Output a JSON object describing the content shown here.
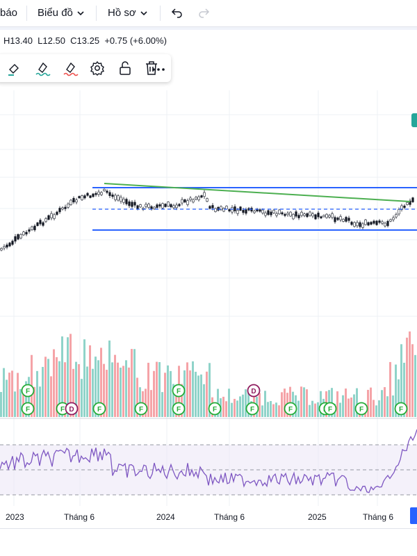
{
  "topbar": {
    "alerts_label": "báo",
    "chart_menu_label": "Biểu đồ",
    "profile_menu_label": "Hồ sơ",
    "undo_icon": "undo-icon",
    "redo_icon": "redo-icon"
  },
  "ohlc": {
    "high": "H13.40",
    "low": "L12.50",
    "close": "C13.25",
    "change": "+0.75 (+6.00%)"
  },
  "drawing_toolbar": {
    "icons": [
      "fill-icon",
      "line-color-icon",
      "line-style-icon",
      "settings-icon",
      "lock-icon",
      "trash-icon",
      "more-icon"
    ]
  },
  "colors": {
    "up": "#26a69a",
    "down": "#ef5350",
    "vol_up": "#8fd3c9",
    "vol_down": "#f5a3a7",
    "channel": "#2962ff",
    "trendline": "#4caf50",
    "rsi": "#7e57c2",
    "rsi_band": "#ede7f6"
  },
  "x_axis": {
    "labels": [
      "2023",
      "Tháng 6",
      "2024",
      "Tháng 6",
      "2025",
      "Tháng 6"
    ]
  },
  "markers": {
    "dividend_letter": "D",
    "earnings_letter": "F"
  }
}
